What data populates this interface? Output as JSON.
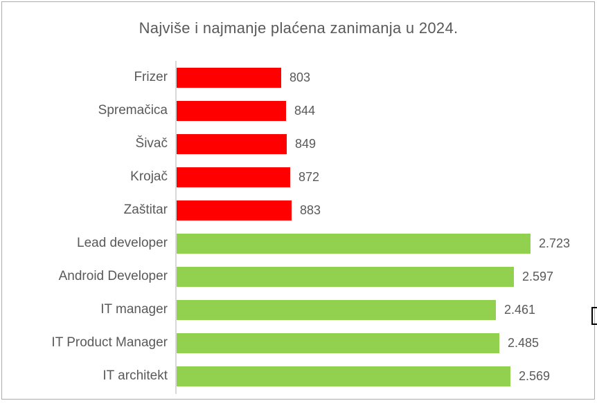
{
  "chart_data": {
    "type": "bar",
    "orientation": "horizontal",
    "title": "Najviše i najmanje plaćena zanimanja u 2024.",
    "categories": [
      "Frizer",
      "Spremačica",
      "Šivač",
      "Krojač",
      "Zaštitar",
      "Lead developer",
      "Android Developer",
      "IT manager",
      "IT Product Manager",
      "IT architekt"
    ],
    "values": [
      803,
      844,
      849,
      872,
      883,
      2723,
      2597,
      2461,
      2485,
      2569
    ],
    "value_labels": [
      "803",
      "844",
      "849",
      "872",
      "883",
      "2.723",
      "2.597",
      "2.461",
      "2.485",
      "2.569"
    ],
    "groups": [
      "low",
      "low",
      "low",
      "low",
      "low",
      "high",
      "high",
      "high",
      "high",
      "high"
    ],
    "colors": {
      "low": "#FF0000",
      "high": "#92D050"
    },
    "xlim": [
      0,
      2900
    ],
    "xlabel": "",
    "ylabel": "",
    "grid": false,
    "legend": "none",
    "value_label_position": "outside-end",
    "text_color": "#595959",
    "axis_line_color": "#D9D9D9",
    "frame_border_color": "#ABABAB"
  }
}
